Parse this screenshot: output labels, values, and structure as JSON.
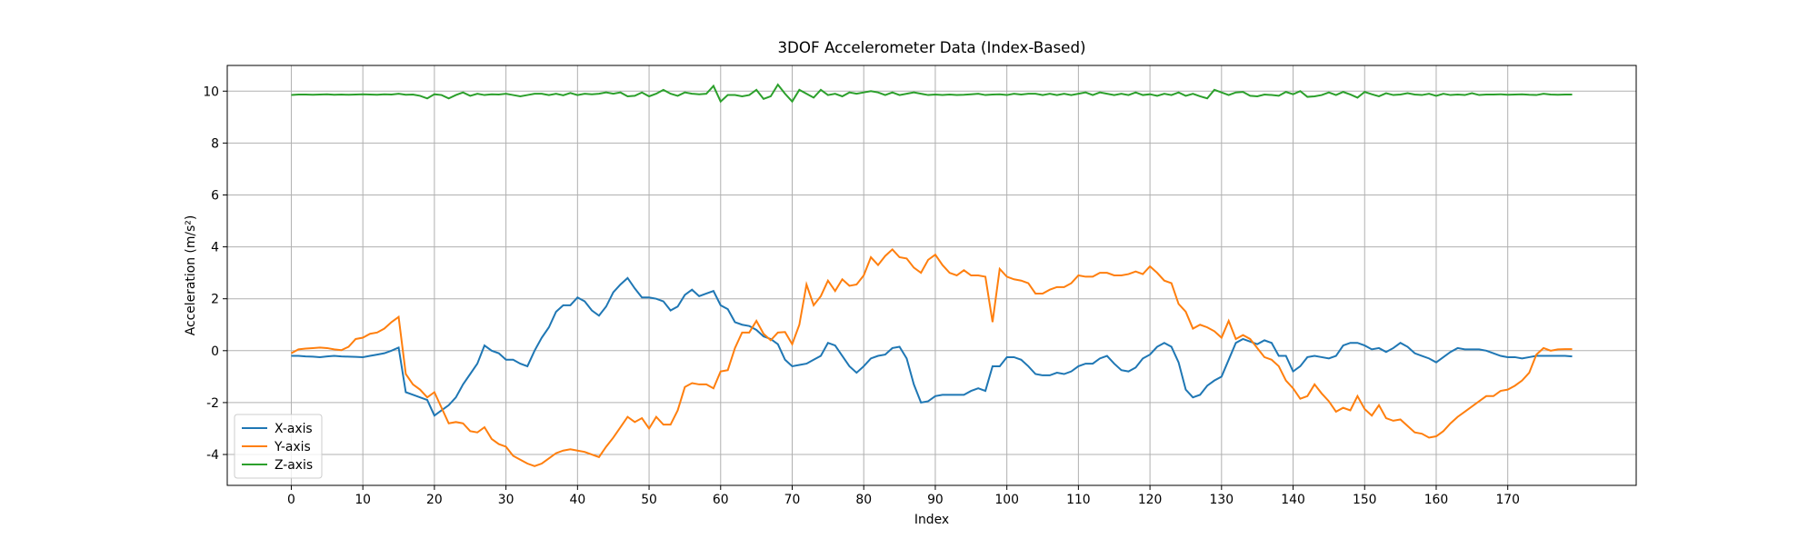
{
  "chart_data": {
    "type": "line",
    "title": "3DOF Accelerometer Data (Index-Based)",
    "xlabel": "Index",
    "ylabel": "Acceleration (m/s²)",
    "x": [
      0,
      1,
      2,
      3,
      4,
      5,
      6,
      7,
      8,
      9,
      10,
      11,
      12,
      13,
      14,
      15,
      16,
      17,
      18,
      19,
      20,
      21,
      22,
      23,
      24,
      25,
      26,
      27,
      28,
      29,
      30,
      31,
      32,
      33,
      34,
      35,
      36,
      37,
      38,
      39,
      40,
      41,
      42,
      43,
      44,
      45,
      46,
      47,
      48,
      49,
      50,
      51,
      52,
      53,
      54,
      55,
      56,
      57,
      58,
      59,
      60,
      61,
      62,
      63,
      64,
      65,
      66,
      67,
      68,
      69,
      70,
      71,
      72,
      73,
      74,
      75,
      76,
      77,
      78,
      79,
      80,
      81,
      82,
      83,
      84,
      85,
      86,
      87,
      88,
      89,
      90,
      91,
      92,
      93,
      94,
      95,
      96,
      97,
      98,
      99,
      100,
      101,
      102,
      103,
      104,
      105,
      106,
      107,
      108,
      109,
      110,
      111,
      112,
      113,
      114,
      115,
      116,
      117,
      118,
      119,
      120,
      121,
      122,
      123,
      124,
      125,
      126,
      127,
      128,
      129,
      130,
      131,
      132,
      133,
      134,
      135,
      136,
      137,
      138,
      139,
      140,
      141,
      142,
      143,
      144,
      145,
      146,
      147,
      148,
      149,
      150,
      151,
      152,
      153,
      154,
      155,
      156,
      157,
      158,
      159,
      160,
      161,
      162,
      163,
      164,
      165,
      166,
      167,
      168,
      169,
      170,
      171,
      172,
      173,
      174,
      175,
      176,
      177,
      178,
      179
    ],
    "series": [
      {
        "name": "X-axis",
        "color": "#1f77b4",
        "values": [
          -0.2,
          -0.2,
          -0.22,
          -0.23,
          -0.25,
          -0.22,
          -0.2,
          -0.22,
          -0.23,
          -0.24,
          -0.25,
          -0.2,
          -0.15,
          -0.1,
          0.0,
          0.12,
          -1.6,
          -1.7,
          -1.8,
          -1.9,
          -2.5,
          -2.3,
          -2.1,
          -1.8,
          -1.3,
          -0.9,
          -0.5,
          0.2,
          0.0,
          -0.1,
          -0.35,
          -0.35,
          -0.5,
          -0.6,
          0.0,
          0.5,
          0.9,
          1.5,
          1.75,
          1.75,
          2.05,
          1.9,
          1.55,
          1.35,
          1.7,
          2.25,
          2.55,
          2.8,
          2.4,
          2.05,
          2.05,
          2.0,
          1.9,
          1.55,
          1.7,
          2.15,
          2.35,
          2.1,
          2.2,
          2.3,
          1.75,
          1.6,
          1.1,
          1.0,
          0.95,
          0.8,
          0.55,
          0.45,
          0.25,
          -0.35,
          -0.6,
          -0.55,
          -0.5,
          -0.35,
          -0.2,
          0.3,
          0.2,
          -0.2,
          -0.6,
          -0.85,
          -0.6,
          -0.3,
          -0.2,
          -0.15,
          0.1,
          0.15,
          -0.3,
          -1.3,
          -2.0,
          -1.95,
          -1.75,
          -1.7,
          -1.7,
          -1.7,
          -1.7,
          -1.55,
          -1.45,
          -1.55,
          -0.6,
          -0.6,
          -0.25,
          -0.25,
          -0.35,
          -0.6,
          -0.9,
          -0.95,
          -0.95,
          -0.85,
          -0.9,
          -0.8,
          -0.6,
          -0.5,
          -0.5,
          -0.3,
          -0.2,
          -0.5,
          -0.75,
          -0.8,
          -0.65,
          -0.3,
          -0.15,
          0.15,
          0.3,
          0.15,
          -0.45,
          -1.5,
          -1.8,
          -1.7,
          -1.35,
          -1.15,
          -1.0,
          -0.35,
          0.3,
          0.45,
          0.35,
          0.25,
          0.4,
          0.3,
          -0.2,
          -0.2,
          -0.8,
          -0.6,
          -0.25,
          -0.2,
          -0.25,
          -0.3,
          -0.2,
          0.2,
          0.3,
          0.3,
          0.2,
          0.05,
          0.1,
          -0.05,
          0.1,
          0.3,
          0.15,
          -0.1,
          -0.2,
          -0.3,
          -0.45,
          -0.25,
          -0.05,
          0.1,
          0.05,
          0.05,
          0.05,
          0.0,
          -0.1,
          -0.2,
          -0.25,
          -0.25,
          -0.3,
          -0.25,
          -0.2,
          -0.2,
          -0.2,
          -0.2,
          -0.2,
          -0.22
        ]
      },
      {
        "name": "Y-axis",
        "color": "#ff7f0e",
        "values": [
          -0.1,
          0.05,
          0.08,
          0.1,
          0.12,
          0.1,
          0.05,
          0.02,
          0.15,
          0.45,
          0.5,
          0.65,
          0.7,
          0.85,
          1.1,
          1.3,
          -0.9,
          -1.3,
          -1.5,
          -1.8,
          -1.6,
          -2.2,
          -2.8,
          -2.75,
          -2.8,
          -3.1,
          -3.15,
          -2.95,
          -3.4,
          -3.6,
          -3.7,
          -4.05,
          -4.2,
          -4.35,
          -4.45,
          -4.35,
          -4.15,
          -3.95,
          -3.85,
          -3.8,
          -3.85,
          -3.9,
          -4.0,
          -4.1,
          -3.7,
          -3.35,
          -2.95,
          -2.55,
          -2.75,
          -2.6,
          -3.0,
          -2.55,
          -2.85,
          -2.85,
          -2.3,
          -1.4,
          -1.25,
          -1.3,
          -1.3,
          -1.45,
          -0.8,
          -0.75,
          0.1,
          0.7,
          0.7,
          1.15,
          0.65,
          0.4,
          0.7,
          0.72,
          0.25,
          1.0,
          2.55,
          1.75,
          2.1,
          2.7,
          2.3,
          2.75,
          2.5,
          2.55,
          2.9,
          3.6,
          3.3,
          3.65,
          3.9,
          3.6,
          3.55,
          3.2,
          3.0,
          3.5,
          3.7,
          3.3,
          3.0,
          2.9,
          3.1,
          2.9,
          2.9,
          2.85,
          1.1,
          3.15,
          2.85,
          2.75,
          2.7,
          2.6,
          2.2,
          2.2,
          2.35,
          2.45,
          2.45,
          2.6,
          2.9,
          2.85,
          2.85,
          3.0,
          3.0,
          2.9,
          2.9,
          2.95,
          3.05,
          2.95,
          3.25,
          3.0,
          2.7,
          2.6,
          1.8,
          1.5,
          0.85,
          1.0,
          0.9,
          0.75,
          0.5,
          1.15,
          0.45,
          0.6,
          0.45,
          0.1,
          -0.25,
          -0.35,
          -0.6,
          -1.15,
          -1.45,
          -1.85,
          -1.75,
          -1.3,
          -1.65,
          -1.95,
          -2.35,
          -2.2,
          -2.3,
          -1.75,
          -2.25,
          -2.5,
          -2.1,
          -2.6,
          -2.7,
          -2.65,
          -2.9,
          -3.15,
          -3.2,
          -3.35,
          -3.3,
          -3.1,
          -2.8,
          -2.55,
          -2.35,
          -2.15,
          -1.95,
          -1.75,
          -1.75,
          -1.55,
          -1.5,
          -1.35,
          -1.15,
          -0.85,
          -0.15,
          0.1,
          0.0,
          0.05,
          0.06,
          0.06
        ]
      },
      {
        "name": "Z-axis",
        "color": "#2ca02c",
        "values": [
          9.85,
          9.87,
          9.87,
          9.86,
          9.87,
          9.88,
          9.86,
          9.87,
          9.86,
          9.87,
          9.88,
          9.87,
          9.86,
          9.88,
          9.87,
          9.9,
          9.86,
          9.87,
          9.82,
          9.72,
          9.88,
          9.85,
          9.72,
          9.85,
          9.95,
          9.82,
          9.9,
          9.85,
          9.88,
          9.87,
          9.9,
          9.85,
          9.8,
          9.85,
          9.9,
          9.9,
          9.85,
          9.9,
          9.84,
          9.93,
          9.85,
          9.9,
          9.88,
          9.9,
          9.95,
          9.9,
          9.95,
          9.8,
          9.82,
          9.95,
          9.8,
          9.9,
          10.05,
          9.9,
          9.82,
          9.95,
          9.9,
          9.88,
          9.9,
          10.2,
          9.6,
          9.85,
          9.85,
          9.8,
          9.85,
          10.05,
          9.7,
          9.8,
          10.25,
          9.9,
          9.6,
          10.05,
          9.9,
          9.75,
          10.05,
          9.85,
          9.9,
          9.8,
          9.95,
          9.9,
          9.95,
          10.0,
          9.95,
          9.85,
          9.95,
          9.85,
          9.9,
          9.95,
          9.9,
          9.85,
          9.87,
          9.85,
          9.87,
          9.85,
          9.86,
          9.88,
          9.9,
          9.85,
          9.87,
          9.88,
          9.85,
          9.9,
          9.87,
          9.9,
          9.9,
          9.85,
          9.9,
          9.85,
          9.9,
          9.85,
          9.9,
          9.95,
          9.85,
          9.95,
          9.9,
          9.85,
          9.9,
          9.85,
          9.95,
          9.85,
          9.88,
          9.82,
          9.9,
          9.85,
          9.95,
          9.82,
          9.9,
          9.8,
          9.72,
          10.05,
          9.95,
          9.85,
          9.95,
          9.97,
          9.82,
          9.8,
          9.87,
          9.85,
          9.82,
          9.97,
          9.88,
          10.0,
          9.78,
          9.8,
          9.85,
          9.95,
          9.85,
          9.97,
          9.87,
          9.75,
          9.97,
          9.88,
          9.8,
          9.92,
          9.85,
          9.87,
          9.92,
          9.87,
          9.85,
          9.9,
          9.82,
          9.9,
          9.85,
          9.87,
          9.85,
          9.92,
          9.85,
          9.87,
          9.87,
          9.88,
          9.86,
          9.87,
          9.88,
          9.86,
          9.85,
          9.9,
          9.87,
          9.86,
          9.87,
          9.87
        ]
      }
    ],
    "xlim": [
      -8.95,
      187.95
    ],
    "xticks": [
      0,
      10,
      20,
      30,
      40,
      50,
      60,
      70,
      80,
      90,
      100,
      110,
      120,
      130,
      140,
      150,
      160,
      170
    ],
    "ylim": [
      -5.19,
      10.99
    ],
    "yticks": [
      -4,
      -2,
      0,
      2,
      4,
      6,
      8,
      10
    ],
    "grid": true,
    "legend": "lower left"
  }
}
